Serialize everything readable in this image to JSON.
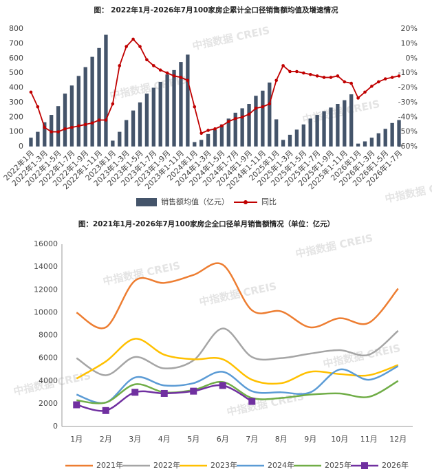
{
  "watermark": "中指数据 CREIS",
  "chart_data": [
    {
      "type": "bar",
      "title": "图： 2022年1月-2026年7月100家房企累计全口径销售额均值及增速情况",
      "categories": [
        "2022年1月",
        null,
        "2022年1-3月",
        null,
        "2022年1-5月",
        null,
        "2022年1-7月",
        null,
        "2022年1-9月",
        null,
        "2022年1-11月",
        null,
        "2023年1月",
        null,
        "2023年1-3月",
        null,
        "2023年1-5月",
        null,
        "2023年1-7月",
        null,
        "2023年1-9月",
        null,
        "2023年1-11月",
        null,
        "2024年1月",
        null,
        "2024年1-3月",
        null,
        "2024年1-5月",
        null,
        "2024年1-7月",
        null,
        "2024年1-9月",
        null,
        "2024年1-11月",
        null,
        "2025年1月",
        null,
        "2025年1-3月",
        null,
        "2025年1-5月",
        null,
        "2025年1-7月",
        null,
        "2025年1-9月",
        null,
        "2025年1-11月",
        null,
        "2026年1月",
        null,
        "2026年1-3月",
        null,
        "2026年1-5月",
        null,
        "2026年1-7月"
      ],
      "series": [
        {
          "name": "销售额均值（亿元）",
          "color": "#44546a",
          "type": "bar",
          "values": [
            60,
            100,
            165,
            215,
            275,
            360,
            415,
            480,
            540,
            610,
            670,
            760,
            40,
            100,
            180,
            245,
            300,
            360,
            400,
            440,
            490,
            520,
            575,
            625,
            30,
            45,
            85,
            115,
            150,
            190,
            230,
            260,
            290,
            345,
            380,
            435,
            185,
            45,
            80,
            115,
            150,
            190,
            215,
            240,
            265,
            290,
            315,
            355,
            20,
            35,
            60,
            90,
            120,
            160,
            180
          ]
        },
        {
          "name": "同比",
          "color": "#c00000",
          "type": "line",
          "axis": "y2",
          "values": [
            -23,
            -33,
            -47,
            -50,
            -50,
            -48,
            -47,
            -46,
            -45,
            -44,
            -42,
            -42,
            -31,
            -5,
            8,
            13,
            8,
            -1,
            -5,
            -8,
            -10,
            -12,
            -13,
            -15,
            -33,
            -51,
            -49,
            -48,
            -46,
            -43,
            -41,
            -40,
            -38,
            -34,
            -33,
            -31,
            -15,
            -5,
            -9,
            -9,
            -10,
            -11,
            -12,
            -13,
            -13,
            -12,
            -16,
            -17,
            -27,
            -23,
            -19,
            -16,
            -14,
            -13,
            -12
          ]
        }
      ],
      "ylim": [
        0,
        800
      ],
      "yticks": [
        0,
        100,
        200,
        300,
        400,
        500,
        600,
        700,
        800
      ],
      "y2lim": [
        -60,
        20
      ],
      "y2ticks": [
        {
          "value": 20,
          "label": "20%"
        },
        {
          "value": 10,
          "label": "10%"
        },
        {
          "value": 0,
          "label": "0%"
        },
        {
          "value": -10,
          "label": "-10%"
        },
        {
          "value": -20,
          "label": "-20%"
        },
        {
          "value": -30,
          "label": "-30%"
        },
        {
          "value": -40,
          "label": "-40%"
        },
        {
          "value": -50,
          "label": "-50%"
        },
        {
          "value": -60,
          "label": "-60%"
        }
      ],
      "grid": false,
      "legend": "bottom"
    },
    {
      "type": "line",
      "title": "图：2021年1月-2026年7月100家房企全口径单月销售额情况（单位：亿元）",
      "categories": [
        "1月",
        "2月",
        "3月",
        "4月",
        "5月",
        "6月",
        "7月",
        "8月",
        "9月",
        "10月",
        "11月",
        "12月"
      ],
      "series": [
        {
          "name": "2021年",
          "color": "#ed7d31",
          "values": [
            10000,
            8700,
            12800,
            12600,
            13300,
            14200,
            10200,
            10100,
            8700,
            9500,
            9100,
            12100
          ]
        },
        {
          "name": "2022年",
          "color": "#a5a5a5",
          "values": [
            6000,
            4500,
            6100,
            5100,
            5800,
            8600,
            6100,
            6000,
            6400,
            6700,
            6300,
            8400
          ]
        },
        {
          "name": "2023年",
          "color": "#ffc000",
          "values": [
            4200,
            5700,
            7700,
            6300,
            5900,
            5900,
            4100,
            3800,
            4800,
            4600,
            4500,
            5400
          ]
        },
        {
          "name": "2024年",
          "color": "#5b9bd5",
          "values": [
            2800,
            2100,
            4300,
            3600,
            3800,
            4800,
            3100,
            3000,
            3000,
            5000,
            4100,
            5300
          ]
        },
        {
          "name": "2025年",
          "color": "#70ad47",
          "values": [
            2300,
            2100,
            3700,
            3000,
            3200,
            3900,
            2500,
            2500,
            2800,
            2900,
            2600,
            4000
          ]
        },
        {
          "name": "2026年",
          "color": "#7030a0",
          "marker": "square",
          "values": [
            1900,
            1400,
            3000,
            2900,
            3100,
            3600,
            2200,
            null,
            null,
            null,
            null,
            null
          ]
        }
      ],
      "ylim": [
        0,
        16000
      ],
      "yticks": [
        0,
        2000,
        4000,
        6000,
        8000,
        10000,
        12000,
        14000,
        16000
      ],
      "grid": false,
      "legend": "bottom"
    }
  ]
}
